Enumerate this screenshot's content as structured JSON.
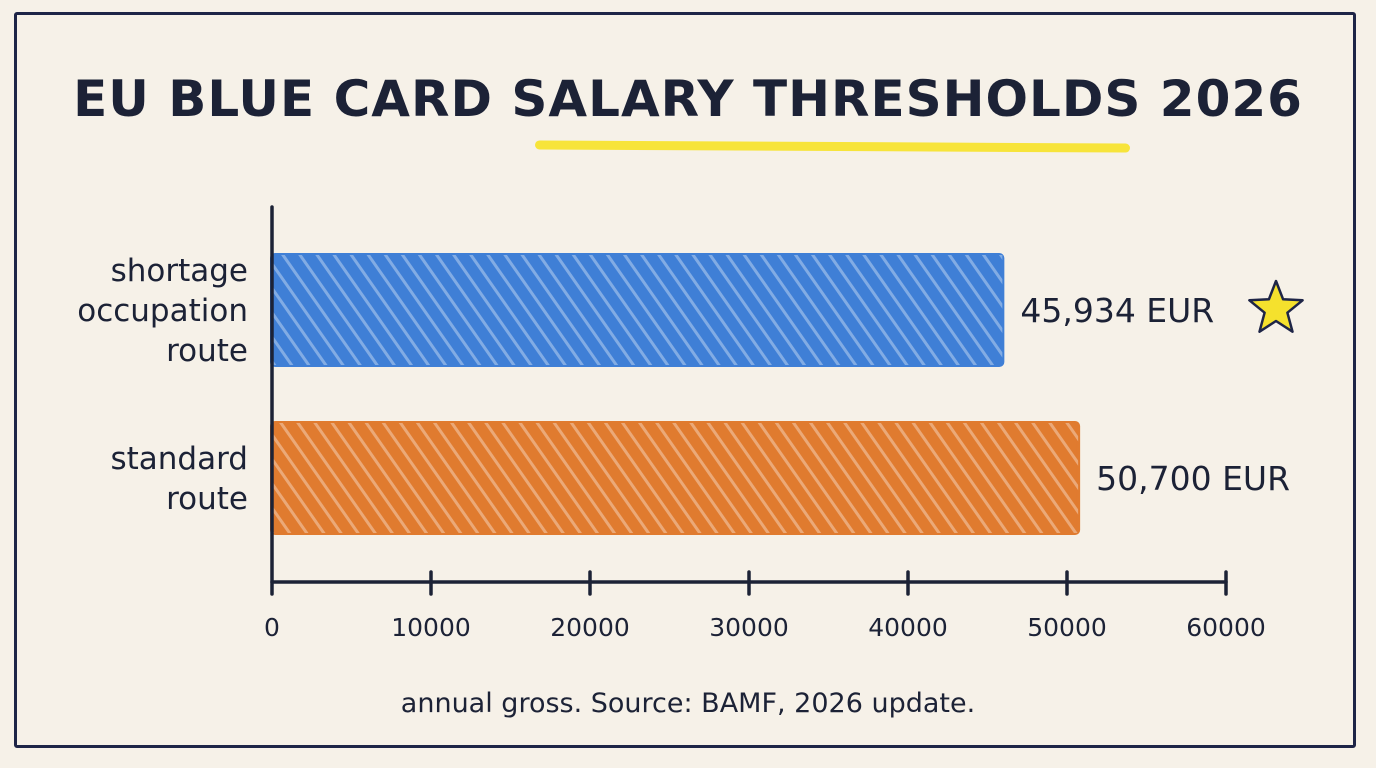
{
  "chart_data": {
    "type": "bar",
    "orientation": "horizontal",
    "title": "EU BLUE CARD SALARY THRESHOLDS 2026",
    "categories": [
      [
        "shortage",
        "occupation",
        "route"
      ],
      [
        "standard",
        "route"
      ]
    ],
    "values": [
      45934,
      50700
    ],
    "value_labels": [
      "45,934 EUR",
      "50,700 EUR"
    ],
    "colors": [
      "#3f7fd6",
      "#e07b2f"
    ],
    "xlim": [
      0,
      60000
    ],
    "xticks": [
      0,
      10000,
      20000,
      30000,
      40000,
      50000,
      60000
    ],
    "xtick_labels": [
      "0",
      "10000",
      "20000",
      "30000",
      "40000",
      "50000",
      "60000"
    ],
    "highlight_marker": "star-icon",
    "highlight_color": "#f5e12d",
    "footnote": "annual gross. Source: BAMF, 2026 update.",
    "grid": false
  }
}
